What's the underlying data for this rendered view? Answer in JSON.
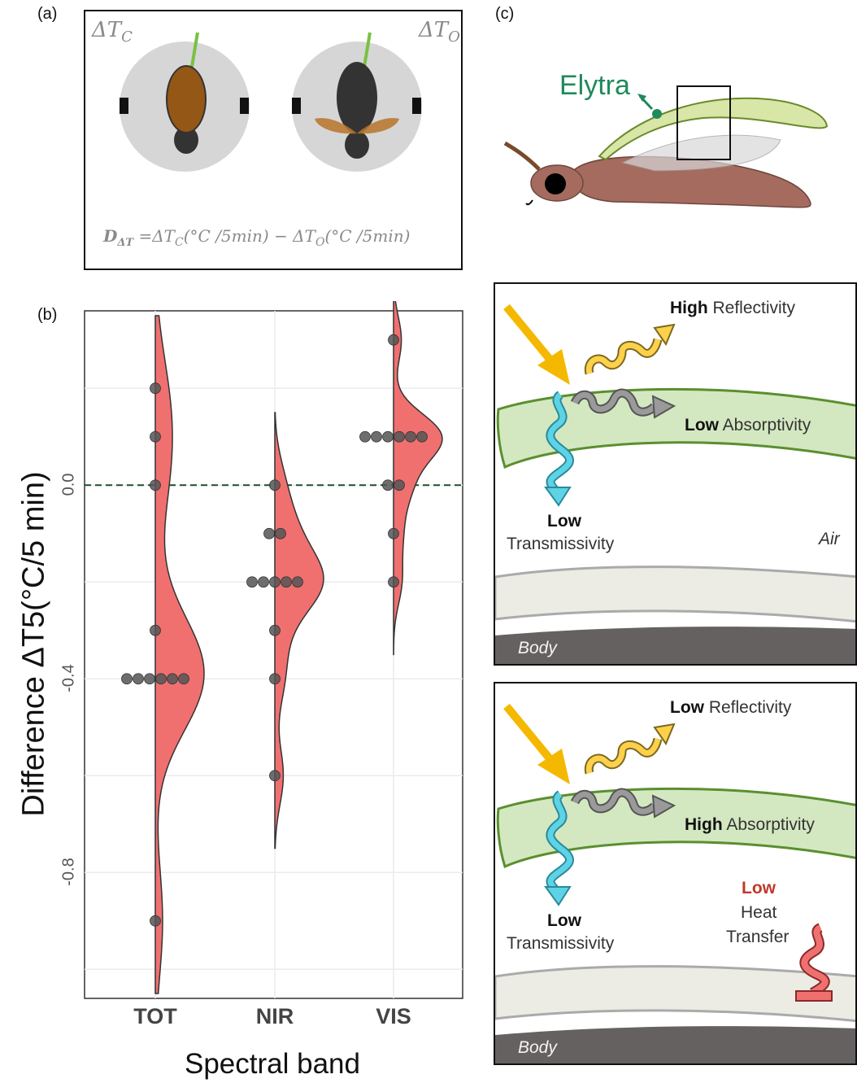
{
  "panels": {
    "a": "(a)",
    "b": "(b)",
    "c": "(c)"
  },
  "panel_a": {
    "delta_tc": "ΔT",
    "delta_tc_sub": "C",
    "delta_to": "ΔT",
    "delta_to_sub": "O",
    "formula": "D",
    "formula_sub": "ΔT",
    "formula_rest": " =ΔT",
    "formula_c": "C",
    "formula_unit1": "(°C /5min) − ΔT",
    "formula_o": "O",
    "formula_unit2": "(°C /5min)"
  },
  "chart_data": {
    "type": "scatter",
    "title": "",
    "xlabel": "Spectral band",
    "ylabel": "Difference  ΔT5(°C/5 min)",
    "categories": [
      "TOT",
      "NIR",
      "VIS"
    ],
    "ylim": [
      -1.06,
      0.36
    ],
    "yticks": [
      0.0,
      -0.4,
      -0.8
    ],
    "ytick_labels": [
      "0.0",
      "-0.4",
      "-0.8"
    ],
    "grid": true,
    "reference_line": 0.0,
    "points": {
      "TOT": [
        0.2,
        0.1,
        0.0,
        -0.3,
        -0.4,
        -0.4,
        -0.4,
        -0.4,
        -0.4,
        -0.4,
        -0.9
      ],
      "NIR": [
        0.0,
        -0.1,
        -0.1,
        -0.2,
        -0.2,
        -0.2,
        -0.2,
        -0.2,
        -0.3,
        -0.4,
        -0.6
      ],
      "VIS": [
        0.3,
        0.1,
        0.1,
        0.1,
        0.1,
        0.1,
        0.1,
        0.0,
        0.0,
        -0.1,
        -0.2
      ]
    },
    "density_color": "#f07070",
    "point_color": "#555555"
  },
  "panel_c": {
    "elytra_label": "Elytra",
    "top": {
      "reflect_bold": "High",
      "reflect": " Reflectivity",
      "absorb_bold": "Low",
      "absorb": " Absorptivity",
      "trans_bold": "Low",
      "trans": "Transmissivity",
      "air": "Air",
      "body": "Body"
    },
    "bottom": {
      "reflect_bold": "Low",
      "reflect": " Reflectivity",
      "absorb_bold": "High",
      "absorb": " Absorptivity",
      "trans_bold": "Low",
      "trans": "Transmissivity",
      "heat_bold": "Low",
      "heat1": "Heat",
      "heat2": "Transfer",
      "body": "Body"
    },
    "colors": {
      "green": "#2e8b57",
      "elytra_fill": "#d9ecc5",
      "elytra_stroke": "#5a8f2e",
      "yellow": "#f5b800",
      "cyan": "#5ed3e6",
      "grey_wave": "#8d8d8d",
      "red": "#e05050"
    }
  }
}
